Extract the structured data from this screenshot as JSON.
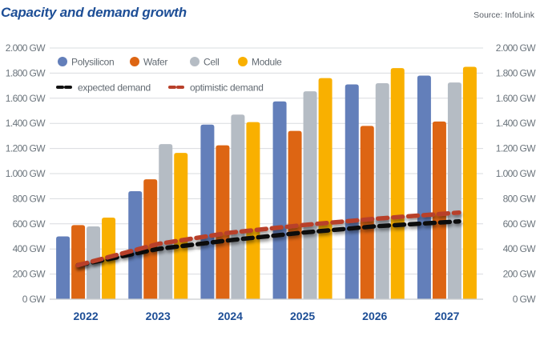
{
  "header": {
    "title": "Capacity and demand growth",
    "source": "Source: InfoLink"
  },
  "legend": {
    "bars": [
      {
        "name": "Polysilicon",
        "color": "#637fba"
      },
      {
        "name": "Wafer",
        "color": "#dd6513"
      },
      {
        "name": "Cell",
        "color": "#b5bcc4"
      },
      {
        "name": "Module",
        "color": "#f9b000"
      }
    ],
    "lines": [
      {
        "name": "expected demand",
        "color": "#111111"
      },
      {
        "name": "optimistic demand",
        "color": "#b8402a"
      }
    ]
  },
  "chart_data": {
    "type": "bar",
    "title": "Capacity and demand growth",
    "xlabel": "",
    "ylabel": "",
    "unit": "GW",
    "categories": [
      "2022",
      "2023",
      "2024",
      "2025",
      "2026",
      "2027"
    ],
    "ylim": [
      0,
      2000
    ],
    "yticks": [
      0,
      200,
      400,
      600,
      800,
      1000,
      1200,
      1400,
      1600,
      1800,
      2000
    ],
    "ytick_labels": [
      "0 GW",
      "200 GW",
      "400 GW",
      "600 GW",
      "800 GW",
      "1.000 GW",
      "1.200 GW",
      "1.400 GW",
      "1.600 GW",
      "1.800 GW",
      "2.000 GW"
    ],
    "grid": true,
    "dual_y_axis_labels": true,
    "legend_position": "top-left",
    "series": [
      {
        "name": "Polysilicon",
        "type": "bar",
        "color": "#637fba",
        "values": [
          500,
          860,
          1390,
          1575,
          1710,
          1780
        ]
      },
      {
        "name": "Wafer",
        "type": "bar",
        "color": "#dd6513",
        "values": [
          590,
          955,
          1225,
          1340,
          1380,
          1415
        ]
      },
      {
        "name": "Cell",
        "type": "bar",
        "color": "#b5bcc4",
        "values": [
          580,
          1235,
          1470,
          1655,
          1720,
          1725
        ]
      },
      {
        "name": "Module",
        "type": "bar",
        "color": "#f9b000",
        "values": [
          650,
          1165,
          1410,
          1760,
          1840,
          1850
        ]
      },
      {
        "name": "expected demand",
        "type": "line",
        "style": "dashed",
        "color": "#111111",
        "values": [
          270,
          400,
          470,
          530,
          580,
          620
        ]
      },
      {
        "name": "optimistic demand",
        "type": "line",
        "style": "dashed",
        "color": "#b8402a",
        "values": [
          270,
          440,
          530,
          590,
          640,
          690
        ]
      }
    ]
  }
}
